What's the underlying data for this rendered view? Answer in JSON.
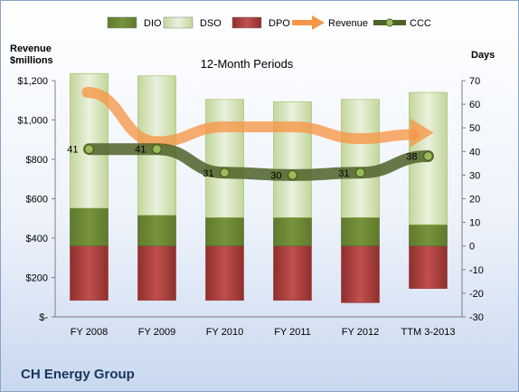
{
  "chart_data": {
    "type": "bar",
    "title": "12-Month Periods",
    "left_axis_title": [
      "Revenue",
      "$millions"
    ],
    "right_axis_title": "Days",
    "categories": [
      "FY 2008",
      "FY 2009",
      "FY 2010",
      "FY 2011",
      "FY 2012",
      "TTM 3-2013"
    ],
    "left_ticks": [
      "$-",
      "$200",
      "$400",
      "$600",
      "$800",
      "$1,000",
      "$1,200"
    ],
    "left_ylim": [
      0,
      1200
    ],
    "right_ticks": [
      "-30",
      "-20",
      "-10",
      "0",
      "10",
      "20",
      "30",
      "40",
      "50",
      "60",
      "70"
    ],
    "right_ylim": [
      -30,
      70
    ],
    "legend_position": "top",
    "series": [
      {
        "name": "DIO",
        "kind": "stacked-bar",
        "axis": "right",
        "color": "#77933c",
        "values": [
          16,
          13,
          12,
          12,
          12,
          9
        ]
      },
      {
        "name": "DSO",
        "kind": "stacked-bar",
        "axis": "right",
        "color": "#d7e4bd",
        "values": [
          57,
          59,
          50,
          49,
          50,
          56
        ]
      },
      {
        "name": "DPO",
        "kind": "negative-bar",
        "axis": "right",
        "color": "#c0504d",
        "values": [
          23,
          23,
          23,
          23,
          24,
          18
        ]
      },
      {
        "name": "Revenue",
        "kind": "line",
        "axis": "left",
        "color": "#f79646",
        "values": [
          1140,
          890,
          965,
          965,
          905,
          935
        ]
      },
      {
        "name": "CCC",
        "kind": "line",
        "axis": "right",
        "color": "#4f6228",
        "values": [
          41,
          41,
          31,
          30,
          31,
          38
        ]
      }
    ],
    "data_labels": [
      "41",
      "41",
      "31",
      "30",
      "31",
      "38"
    ],
    "grid": false
  },
  "footer": {
    "company": "CH Energy Group"
  }
}
